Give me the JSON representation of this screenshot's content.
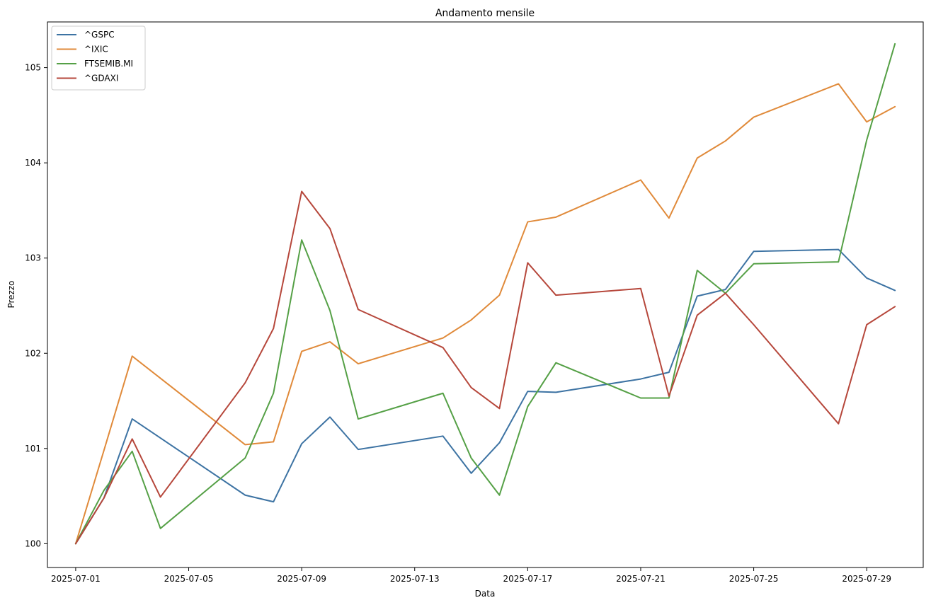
{
  "chart_data": {
    "type": "line",
    "title": "Andamento mensile",
    "xlabel": "Data",
    "ylabel": "Prezzo",
    "x": [
      "2025-07-01",
      "2025-07-02",
      "2025-07-03",
      "2025-07-04",
      "2025-07-07",
      "2025-07-08",
      "2025-07-09",
      "2025-07-10",
      "2025-07-11",
      "2025-07-14",
      "2025-07-15",
      "2025-07-16",
      "2025-07-17",
      "2025-07-18",
      "2025-07-21",
      "2025-07-22",
      "2025-07-23",
      "2025-07-24",
      "2025-07-25",
      "2025-07-28",
      "2025-07-29",
      "2025-07-30"
    ],
    "xticks": [
      "2025-07-01",
      "2025-07-05",
      "2025-07-09",
      "2025-07-13",
      "2025-07-17",
      "2025-07-21",
      "2025-07-25",
      "2025-07-29"
    ],
    "yticks": [
      "100",
      "101",
      "102",
      "103",
      "104",
      "105"
    ],
    "xlim": [
      "2025-06-30",
      "2025-07-31"
    ],
    "ylim": [
      99.75,
      105.48
    ],
    "grid": false,
    "legend_position": "top-left",
    "series": [
      {
        "name": "^GSPC",
        "color": "#3d73a3",
        "x": [
          "2025-07-01",
          "2025-07-02",
          "2025-07-03",
          "2025-07-07",
          "2025-07-08",
          "2025-07-09",
          "2025-07-10",
          "2025-07-11",
          "2025-07-14",
          "2025-07-15",
          "2025-07-16",
          "2025-07-17",
          "2025-07-18",
          "2025-07-21",
          "2025-07-22",
          "2025-07-23",
          "2025-07-24",
          "2025-07-25",
          "2025-07-28",
          "2025-07-29",
          "2025-07-30"
        ],
        "values": [
          100.0,
          100.48,
          101.31,
          100.51,
          100.44,
          101.05,
          101.33,
          100.99,
          101.13,
          100.74,
          101.06,
          101.6,
          101.59,
          101.73,
          101.8,
          102.6,
          102.67,
          103.07,
          103.09,
          102.79,
          102.66
        ]
      },
      {
        "name": "^IXIC",
        "color": "#e08a3a",
        "x": [
          "2025-07-01",
          "2025-07-02",
          "2025-07-03",
          "2025-07-07",
          "2025-07-08",
          "2025-07-09",
          "2025-07-10",
          "2025-07-11",
          "2025-07-14",
          "2025-07-15",
          "2025-07-16",
          "2025-07-17",
          "2025-07-18",
          "2025-07-21",
          "2025-07-22",
          "2025-07-23",
          "2025-07-24",
          "2025-07-25",
          "2025-07-28",
          "2025-07-29",
          "2025-07-30"
        ],
        "values": [
          100.0,
          100.98,
          101.97,
          101.04,
          101.07,
          102.02,
          102.12,
          101.89,
          102.16,
          102.35,
          102.61,
          103.38,
          103.43,
          103.82,
          103.42,
          104.05,
          104.23,
          104.48,
          104.83,
          104.43,
          104.59
        ]
      },
      {
        "name": "FTSEMIB.MI",
        "color": "#55a046",
        "x": [
          "2025-07-01",
          "2025-07-02",
          "2025-07-03",
          "2025-07-04",
          "2025-07-07",
          "2025-07-08",
          "2025-07-09",
          "2025-07-10",
          "2025-07-11",
          "2025-07-14",
          "2025-07-15",
          "2025-07-16",
          "2025-07-17",
          "2025-07-18",
          "2025-07-21",
          "2025-07-22",
          "2025-07-23",
          "2025-07-24",
          "2025-07-25",
          "2025-07-28",
          "2025-07-29",
          "2025-07-30"
        ],
        "values": [
          100.0,
          100.56,
          100.97,
          100.16,
          100.9,
          101.58,
          103.19,
          102.45,
          101.31,
          101.58,
          100.9,
          100.51,
          101.44,
          101.9,
          101.53,
          101.53,
          102.87,
          102.63,
          102.94,
          102.96,
          104.24,
          105.25
        ]
      },
      {
        "name": "^GDAXI",
        "color": "#b6473b",
        "x": [
          "2025-07-01",
          "2025-07-02",
          "2025-07-03",
          "2025-07-04",
          "2025-07-07",
          "2025-07-08",
          "2025-07-09",
          "2025-07-10",
          "2025-07-11",
          "2025-07-14",
          "2025-07-15",
          "2025-07-16",
          "2025-07-17",
          "2025-07-18",
          "2025-07-21",
          "2025-07-22",
          "2025-07-23",
          "2025-07-24",
          "2025-07-25",
          "2025-07-28",
          "2025-07-29",
          "2025-07-30"
        ],
        "values": [
          100.0,
          100.48,
          101.1,
          100.49,
          101.69,
          102.26,
          103.7,
          103.31,
          102.46,
          102.06,
          101.64,
          101.42,
          102.95,
          102.61,
          102.68,
          101.55,
          102.4,
          102.63,
          102.3,
          101.26,
          102.3,
          102.49
        ]
      }
    ]
  }
}
